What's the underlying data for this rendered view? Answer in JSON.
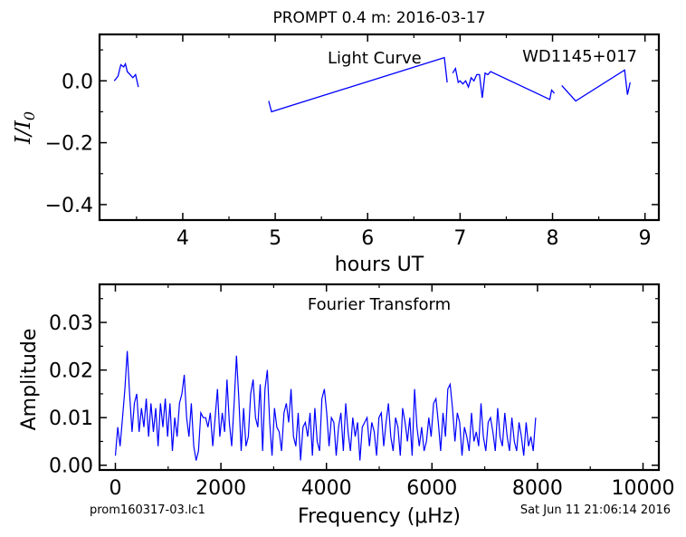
{
  "title": "PROMPT 0.4 m:  2016-03-17",
  "footer": {
    "left": "prom160317-03.lc1",
    "right": "Sat Jun 11 21:06:14 2016"
  },
  "colors": {
    "line": "#0000ff",
    "axes": "#000000"
  },
  "chart_data": [
    {
      "type": "line",
      "annotation_left": "Light Curve",
      "annotation_right": "WD1145+017",
      "xlabel": "hours UT",
      "ylabel": "I/I0",
      "xlim": [
        3.1,
        9.15
      ],
      "ylim": [
        -0.45,
        0.15
      ],
      "xticks": [
        "4",
        "5",
        "6",
        "7",
        "8",
        "9"
      ],
      "yticks": [
        "0.0",
        "−0.2",
        "−0.4"
      ],
      "segments": [
        {
          "x": [
            3.26,
            3.3,
            3.33,
            3.36,
            3.38,
            3.4,
            3.43,
            3.46,
            3.49,
            3.52
          ],
          "y": [
            0.0,
            0.015,
            0.052,
            0.045,
            0.055,
            0.03,
            0.02,
            0.01,
            0.02,
            -0.02
          ]
        },
        {
          "x": [
            4.93,
            4.96,
            6.83,
            6.86
          ],
          "y": [
            -0.065,
            -0.1,
            0.075,
            -0.005
          ]
        },
        {
          "x": [
            6.92,
            6.95,
            6.98,
            7.0,
            7.03,
            7.06,
            7.09,
            7.12,
            7.15,
            7.18,
            7.21,
            7.24,
            7.27,
            7.3,
            7.33,
            7.97,
            7.99,
            8.02
          ],
          "y": [
            0.025,
            0.04,
            -0.005,
            0.0,
            -0.01,
            0.0,
            -0.02,
            0.01,
            0.0,
            0.02,
            0.02,
            -0.055,
            0.025,
            0.02,
            0.03,
            -0.06,
            -0.03,
            -0.04
          ]
        },
        {
          "x": [
            8.1,
            8.25,
            8.78,
            8.81,
            8.84
          ],
          "y": [
            -0.015,
            -0.065,
            0.035,
            -0.045,
            -0.005
          ]
        }
      ]
    },
    {
      "type": "line",
      "annotation": "Fourier Transform",
      "xlabel": "Frequency (μHz)",
      "ylabel": "Amplitude",
      "xlim": [
        -300,
        10300
      ],
      "ylim": [
        -0.001,
        0.038
      ],
      "xticks": [
        "0",
        "2000",
        "4000",
        "6000",
        "8000",
        "10000"
      ],
      "yticks": [
        "0.00",
        "0.01",
        "0.02",
        "0.03"
      ],
      "x_start": 0,
      "x_step": 45,
      "values": [
        0.002,
        0.008,
        0.004,
        0.01,
        0.016,
        0.024,
        0.015,
        0.007,
        0.013,
        0.015,
        0.007,
        0.012,
        0.008,
        0.014,
        0.006,
        0.013,
        0.007,
        0.012,
        0.004,
        0.013,
        0.008,
        0.014,
        0.006,
        0.013,
        0.003,
        0.01,
        0.006,
        0.013,
        0.015,
        0.019,
        0.01,
        0.006,
        0.013,
        0.004,
        0.001,
        0.003,
        0.011,
        0.01,
        0.01,
        0.008,
        0.011,
        0.004,
        0.01,
        0.016,
        0.006,
        0.011,
        0.007,
        0.018,
        0.009,
        0.004,
        0.013,
        0.023,
        0.014,
        0.003,
        0.012,
        0.004,
        0.006,
        0.015,
        0.018,
        0.01,
        0.008,
        0.017,
        0.003,
        0.016,
        0.02,
        0.009,
        0.002,
        0.012,
        0.008,
        0.007,
        0.003,
        0.011,
        0.013,
        0.009,
        0.016,
        0.006,
        0.004,
        0.011,
        0.001,
        0.008,
        0.009,
        0.006,
        0.011,
        0.002,
        0.012,
        0.005,
        0.003,
        0.014,
        0.016,
        0.011,
        0.004,
        0.01,
        0.009,
        0.002,
        0.008,
        0.011,
        0.003,
        0.013,
        0.007,
        0.003,
        0.01,
        0.006,
        0.009,
        0.001,
        0.008,
        0.009,
        0.01,
        0.004,
        0.009,
        0.007,
        0.002,
        0.01,
        0.011,
        0.004,
        0.009,
        0.013,
        0.006,
        0.003,
        0.01,
        0.008,
        0.002,
        0.012,
        0.009,
        0.005,
        0.01,
        0.002,
        0.016,
        0.008,
        0.004,
        0.008,
        0.003,
        0.005,
        0.01,
        0.006,
        0.013,
        0.014,
        0.009,
        0.003,
        0.011,
        0.006,
        0.016,
        0.017,
        0.012,
        0.005,
        0.011,
        0.009,
        0.002,
        0.008,
        0.006,
        0.003,
        0.011,
        0.005,
        0.007,
        0.004,
        0.013,
        0.006,
        0.003,
        0.009,
        0.01,
        0.007,
        0.003,
        0.012,
        0.006,
        0.004,
        0.011,
        0.006,
        0.003,
        0.01,
        0.005,
        0.003,
        0.009,
        0.006,
        0.002,
        0.009,
        0.004,
        0.006,
        0.003,
        0.01
      ]
    }
  ]
}
